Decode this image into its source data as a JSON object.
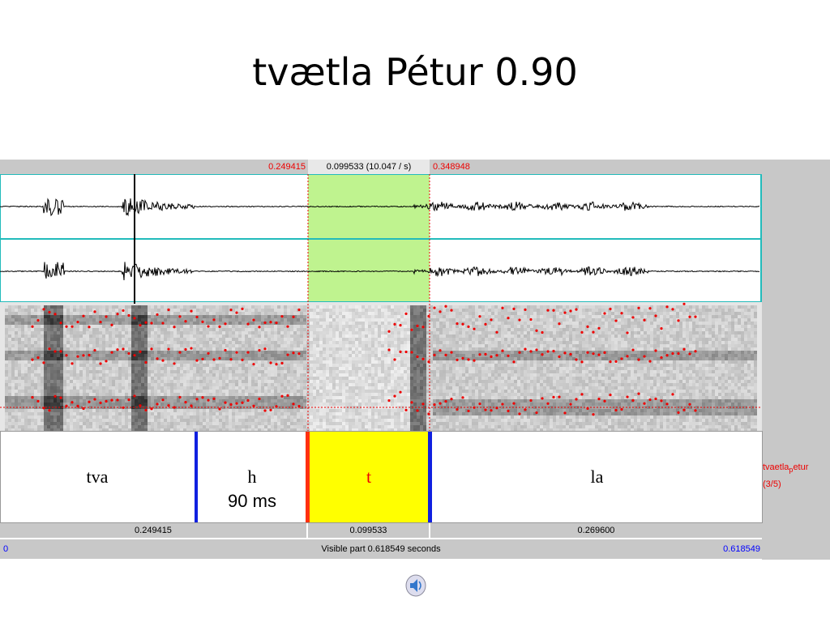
{
  "slide": {
    "title": "tvætla Pétur 0.90"
  },
  "praat": {
    "selection_bar": {
      "start": "0.249415",
      "duration": "0.099533 (10.047 / s)",
      "end": "0.348948"
    },
    "tier": {
      "intervals": [
        {
          "label": "tva"
        },
        {
          "label": "h",
          "note": "90 ms"
        },
        {
          "label": "t"
        },
        {
          "label": "la"
        }
      ],
      "name": {
        "main": "tvaetla",
        "sub": "p",
        "rest": "etur"
      },
      "index": "(3/5)"
    },
    "durations": [
      "0.249415",
      "0.099533",
      "0.269600"
    ],
    "visible_bar": {
      "start": "0",
      "text": "Visible part 0.618549 seconds",
      "end": "0.618549"
    }
  }
}
